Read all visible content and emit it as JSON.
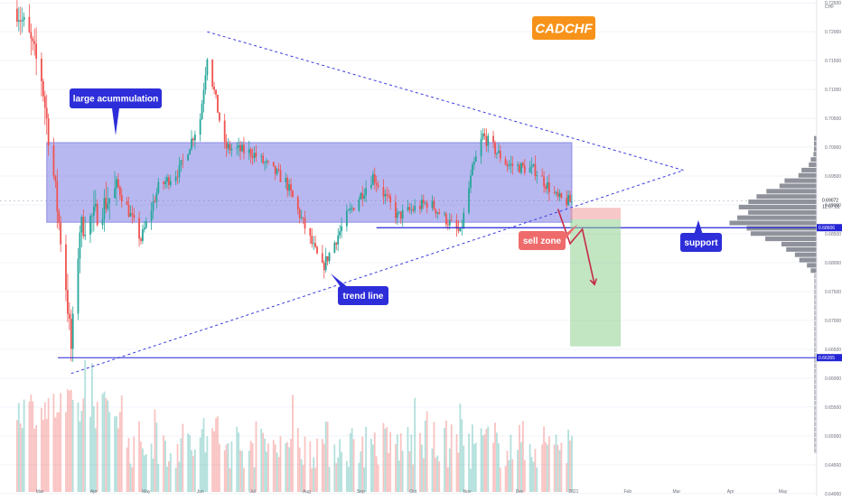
{
  "chart_data": {
    "type": "candlestick",
    "symbol": "CADCHF",
    "currency": "CHF",
    "price_axis": {
      "ticks": [
        "0.72500",
        "0.72000",
        "0.71500",
        "0.71000",
        "0.70500",
        "0.70000",
        "0.69500",
        "0.69000",
        "0.68500",
        "0.68000",
        "0.67500",
        "0.67000",
        "0.66500",
        "0.66000",
        "0.65500",
        "0.65000",
        "0.64500",
        "0.64000"
      ],
      "ylim": [
        0.6395,
        0.7255
      ],
      "current_price": "0.69072",
      "countdown": "12:07:01"
    },
    "time_axis": {
      "labels": [
        "Mar",
        "Apr",
        "May",
        "Jun",
        "Jul",
        "Aug",
        "Sep",
        "Oct",
        "Nov",
        "Dec",
        "2021",
        "Feb",
        "Mar",
        "Apr",
        "May"
      ]
    },
    "levels": [
      {
        "name": "support",
        "price": 0.68606,
        "label": "0.68606",
        "color": "#2424d6"
      },
      {
        "name": "march-low",
        "price": 0.66355,
        "label": "0.66355",
        "color": "#2424d6"
      }
    ],
    "anchors": {
      "high": {
        "date": "2020-06-05",
        "price": 0.72
      },
      "low": {
        "date": "2020-03-19",
        "price": 0.6608
      },
      "apex": {
        "date": "2021-03-05",
        "price": 0.696
      }
    },
    "accumulation_zone": {
      "from": "2020-03-05",
      "to": "2020-12-31",
      "top": 0.7008,
      "bottom": 0.687
    },
    "trade": {
      "entry": 0.6875,
      "stop": 0.6895,
      "target": 0.6655,
      "from": "2020-12-30",
      "to": "2021-01-28",
      "path": [
        [
          "2020-12-23",
          0.6893
        ],
        [
          "2020-12-30",
          0.6833
        ],
        [
          "2021-01-06",
          0.6858
        ],
        [
          "2021-01-13",
          0.6762
        ]
      ]
    },
    "volume_profile_top_price": 0.7001,
    "volume_profile_bottom_price": 0.679,
    "volume_profile_peak_price": 0.6886,
    "colors": {
      "up": "#26a69a",
      "down": "#ef5350"
    }
  },
  "annotations": {
    "title": "CADCHF",
    "accumulation": "large acummulation",
    "trend": "trend line",
    "sell": "sell zone",
    "support": "support"
  }
}
